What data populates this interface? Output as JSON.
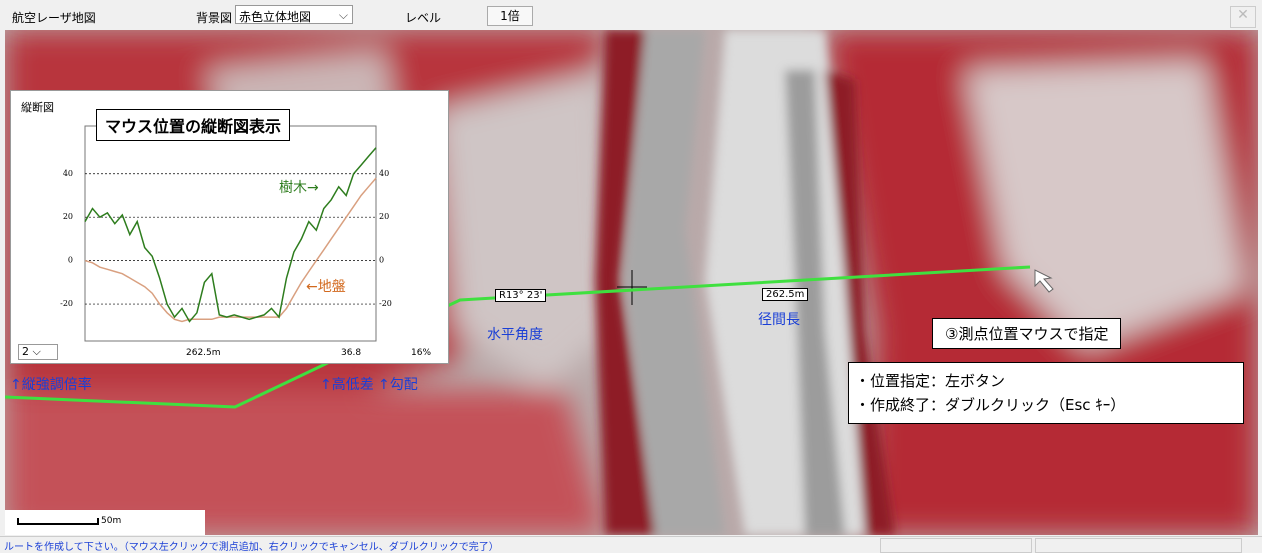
{
  "toolbar": {
    "app_title": "航空レーザ地図",
    "background_label": "背景図",
    "background_value": "赤色立体地図",
    "level_label": "レベル",
    "level_value": "1倍"
  },
  "profile": {
    "title": "縦断図",
    "caption": "マウス位置の縦断図表示",
    "yticks": [
      40,
      20,
      0,
      -20
    ],
    "ylim": [
      -37,
      62
    ],
    "trees_label": "樹木→",
    "ground_label": "←地盤",
    "trees_color": "#2e7d1e",
    "ground_color": "#d9a080",
    "trees": [
      18,
      24,
      20,
      22,
      17,
      21,
      12,
      18,
      6,
      2,
      -8,
      -20,
      -26,
      -22,
      -28,
      -24,
      -10,
      -6,
      -25,
      -26,
      -25,
      -26,
      -27,
      -26,
      -25,
      -22,
      -26,
      -8,
      4,
      10,
      18,
      14,
      24,
      28,
      34,
      30,
      40,
      44,
      48,
      52
    ],
    "ground": [
      0,
      -1,
      -3,
      -4,
      -5,
      -6,
      -8,
      -10,
      -12,
      -15,
      -20,
      -24,
      -27,
      -28,
      -27,
      -27,
      -27,
      -27,
      -26,
      -26,
      -26,
      -26,
      -26,
      -26,
      -26,
      -26,
      -26,
      -22,
      -16,
      -10,
      -5,
      0,
      5,
      10,
      15,
      20,
      25,
      30,
      34,
      38
    ],
    "exaggeration": "2",
    "distance": "262.5m",
    "height_diff": "36.8",
    "slope": "16%"
  },
  "annotations": {
    "exaggeration_note": "↑縦強調倍率",
    "height_diff_note": "↑高低差",
    "slope_note": "↑勾配",
    "angle": "R13° 23'",
    "angle_note": "水平角度",
    "span": "262.5m",
    "span_note": "径間長",
    "instruction": "③測点位置マウスで指定",
    "help": [
      "・位置指定：左ボタン",
      "・作成終了：ダブルクリック（Esc ｷｰ）"
    ]
  },
  "scale_bar": "50m",
  "status": "ルートを作成して下さい。（マウス左クリックで測点追加、右クリックでキャンセル、ダブルクリックで完了）"
}
